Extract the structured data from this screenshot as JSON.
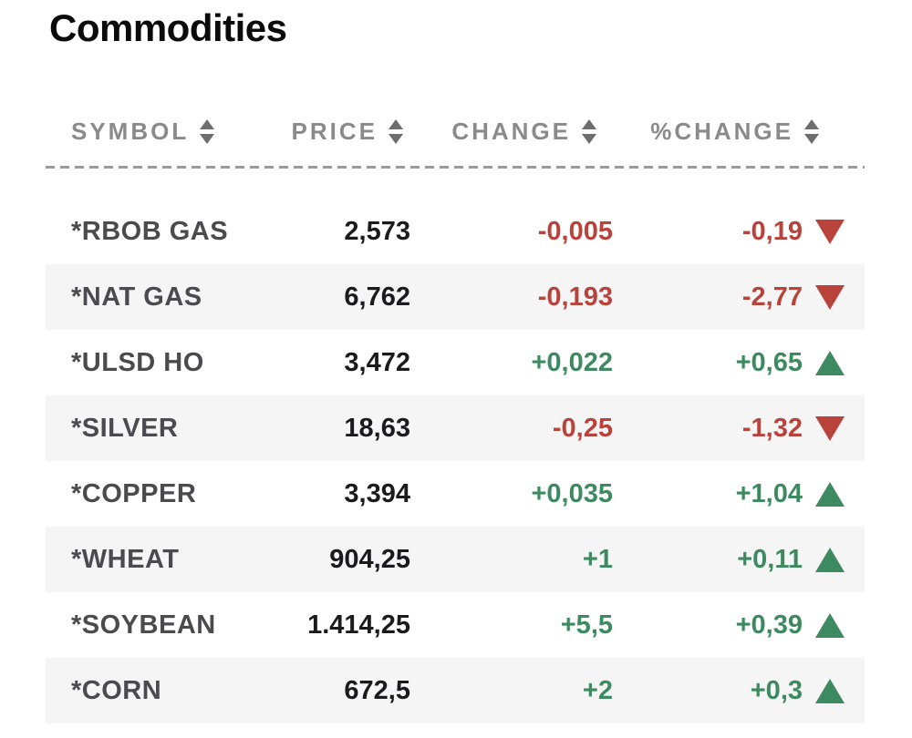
{
  "widget": {
    "title": "Commodities",
    "columns": [
      {
        "key": "symbol",
        "label": "SYMBOL",
        "sort_icon": "up-down-triangles"
      },
      {
        "key": "price",
        "label": "PRICE",
        "sort_icon": "up-down-triangles"
      },
      {
        "key": "change",
        "label": "CHANGE",
        "sort_icon": "up-down-triangles"
      },
      {
        "key": "pct_change",
        "label": "%CHANGE",
        "sort_icon": "up-down-triangles"
      }
    ],
    "rows": [
      {
        "symbol": "*RBOB GAS",
        "price": "2,573",
        "change": "-0,005",
        "pct_change": "-0,19",
        "direction": "down"
      },
      {
        "symbol": "*NAT GAS",
        "price": "6,762",
        "change": "-0,193",
        "pct_change": "-2,77",
        "direction": "down"
      },
      {
        "symbol": "*ULSD HO",
        "price": "3,472",
        "change": "+0,022",
        "pct_change": "+0,65",
        "direction": "up"
      },
      {
        "symbol": "*SILVER",
        "price": "18,63",
        "change": "-0,25",
        "pct_change": "-1,32",
        "direction": "down"
      },
      {
        "symbol": "*COPPER",
        "price": "3,394",
        "change": "+0,035",
        "pct_change": "+1,04",
        "direction": "up"
      },
      {
        "symbol": "*WHEAT",
        "price": "904,25",
        "change": "+1",
        "pct_change": "+0,11",
        "direction": "up"
      },
      {
        "symbol": "*SOYBEAN",
        "price": "1.414,25",
        "change": "+5,5",
        "pct_change": "+0,39",
        "direction": "up"
      },
      {
        "symbol": "*CORN",
        "price": "672,5",
        "change": "+2",
        "pct_change": "+0,3",
        "direction": "up"
      }
    ],
    "colors": {
      "positive": "#3e8a60",
      "negative": "#b9423b",
      "header_text": "#8a8a8a",
      "alt_row_background": "#f5f5f5",
      "symbol_text": "#4a4a4f",
      "price_text": "#1b1b1d"
    },
    "icons": {
      "sort": "up-down-triangles",
      "up": "filled-triangle-up",
      "down": "filled-triangle-down"
    }
  }
}
